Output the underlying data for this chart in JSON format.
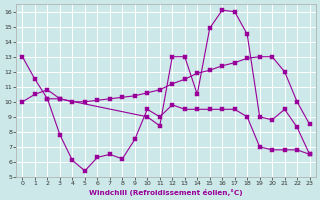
{
  "bg_color": "#cce8e8",
  "line_color": "#990099",
  "grid_color": "#ffffff",
  "xlim": [
    -0.5,
    23.5
  ],
  "ylim": [
    5,
    16.5
  ],
  "yticks": [
    5,
    6,
    7,
    8,
    9,
    10,
    11,
    12,
    13,
    14,
    15,
    16
  ],
  "xticks": [
    0,
    1,
    2,
    3,
    4,
    5,
    6,
    7,
    8,
    9,
    10,
    11,
    12,
    13,
    14,
    15,
    16,
    17,
    18,
    19,
    20,
    21,
    22,
    23
  ],
  "xlabel": "Windchill (Refroidissement éolien,°C)",
  "line1_x": [
    0,
    1,
    2,
    3,
    10,
    11,
    12,
    13,
    14,
    15,
    16,
    17,
    18,
    19,
    20,
    21,
    22,
    23
  ],
  "line1_y": [
    13.0,
    11.5,
    10.2,
    10.2,
    9.0,
    8.4,
    13.0,
    13.0,
    10.5,
    14.9,
    16.1,
    16.0,
    14.5,
    9.0,
    8.8,
    9.5,
    8.3,
    6.5
  ],
  "line2_x": [
    0,
    1,
    2,
    3,
    4,
    5,
    6,
    7,
    8,
    9,
    10,
    11,
    12,
    13,
    14,
    15,
    16,
    17,
    18,
    19,
    20,
    21,
    22,
    23
  ],
  "line2_y": [
    10.0,
    10.5,
    10.8,
    10.2,
    10.0,
    10.0,
    10.1,
    10.2,
    10.3,
    10.4,
    10.6,
    10.8,
    11.2,
    11.5,
    11.9,
    12.1,
    12.4,
    12.6,
    12.9,
    13.0,
    13.0,
    12.0,
    10.0,
    8.5
  ],
  "line3_x": [
    2,
    3,
    4,
    5,
    6,
    7,
    8,
    9,
    10,
    11,
    12,
    13,
    14,
    15,
    16,
    17,
    18,
    19,
    20,
    21,
    22,
    23
  ],
  "line3_y": [
    10.2,
    7.8,
    6.1,
    5.4,
    6.3,
    6.5,
    6.2,
    7.5,
    9.5,
    9.0,
    9.8,
    9.5,
    9.5,
    9.5,
    9.5,
    9.5,
    9.0,
    7.0,
    6.8,
    6.8,
    6.8,
    6.5
  ]
}
